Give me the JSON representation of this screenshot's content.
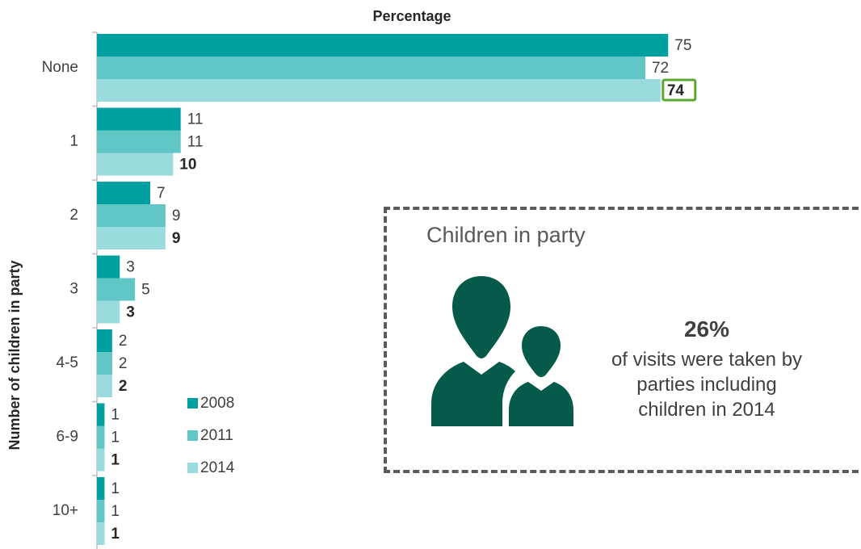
{
  "chart_data": {
    "type": "bar",
    "orientation": "horizontal",
    "title": "Percentage",
    "ylabel": "Number of children in party",
    "categories": [
      "None",
      "1",
      "2",
      "3",
      "4-5",
      "6-9",
      "10+"
    ],
    "series": [
      {
        "name": "2008",
        "color": "#00a0a0",
        "values": [
          75,
          11,
          7,
          3,
          2,
          1,
          1
        ]
      },
      {
        "name": "2011",
        "color": "#60c6c6",
        "values": [
          72,
          11,
          9,
          5,
          2,
          1,
          1
        ]
      },
      {
        "name": "2014",
        "color": "#9adbdd",
        "values": [
          74,
          10,
          9,
          3,
          2,
          1,
          1
        ]
      }
    ],
    "xlim": [
      0,
      80
    ],
    "grid": false,
    "legend": "lower-middle",
    "highlight": {
      "series": "2014",
      "category": "None",
      "color": "#5aa832"
    }
  },
  "callout": {
    "title": "Children in party",
    "stat": "26%",
    "lines": [
      "of visits were taken by",
      "parties including",
      "children in 2014"
    ],
    "icon": "parent-child-icon",
    "icon_color": "#055a4a"
  }
}
